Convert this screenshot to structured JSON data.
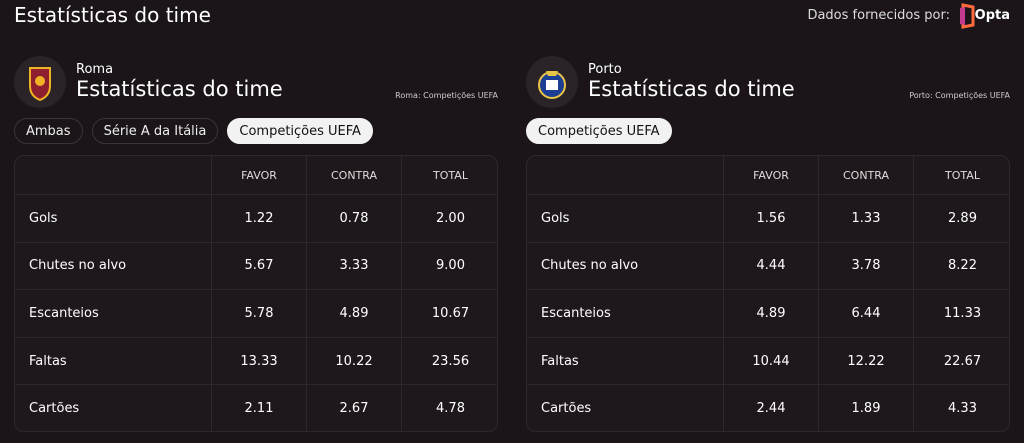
{
  "header": {
    "title": "Estatísticas do time",
    "provider_label": "Dados fornecidos por:",
    "provider": "Opta"
  },
  "teams": [
    {
      "name": "Roma",
      "title": "Estatísticas do time",
      "note": "Roma: Competições UEFA",
      "filters": [
        "Ambas",
        "Série A da Itália",
        "Competições UEFA"
      ],
      "active_filter": 2,
      "table": {
        "columns": [
          "FAVOR",
          "CONTRA",
          "TOTAL"
        ],
        "rows": [
          {
            "label": "Gols",
            "values": [
              "1.22",
              "0.78",
              "2.00"
            ]
          },
          {
            "label": "Chutes no alvo",
            "values": [
              "5.67",
              "3.33",
              "9.00"
            ]
          },
          {
            "label": "Escanteios",
            "values": [
              "5.78",
              "4.89",
              "10.67"
            ]
          },
          {
            "label": "Faltas",
            "values": [
              "13.33",
              "10.22",
              "23.56"
            ]
          },
          {
            "label": "Cartões",
            "values": [
              "2.11",
              "2.67",
              "4.78"
            ]
          }
        ]
      }
    },
    {
      "name": "Porto",
      "title": "Estatísticas do time",
      "note": "Porto: Competições UEFA",
      "filters": [
        "Competições UEFA"
      ],
      "active_filter": 0,
      "table": {
        "columns": [
          "FAVOR",
          "CONTRA",
          "TOTAL"
        ],
        "rows": [
          {
            "label": "Gols",
            "values": [
              "1.56",
              "1.33",
              "2.89"
            ]
          },
          {
            "label": "Chutes no alvo",
            "values": [
              "4.44",
              "3.78",
              "8.22"
            ]
          },
          {
            "label": "Escanteios",
            "values": [
              "4.89",
              "6.44",
              "11.33"
            ]
          },
          {
            "label": "Faltas",
            "values": [
              "10.44",
              "12.22",
              "22.67"
            ]
          },
          {
            "label": "Cartões",
            "values": [
              "2.44",
              "1.89",
              "4.33"
            ]
          }
        ]
      }
    }
  ]
}
